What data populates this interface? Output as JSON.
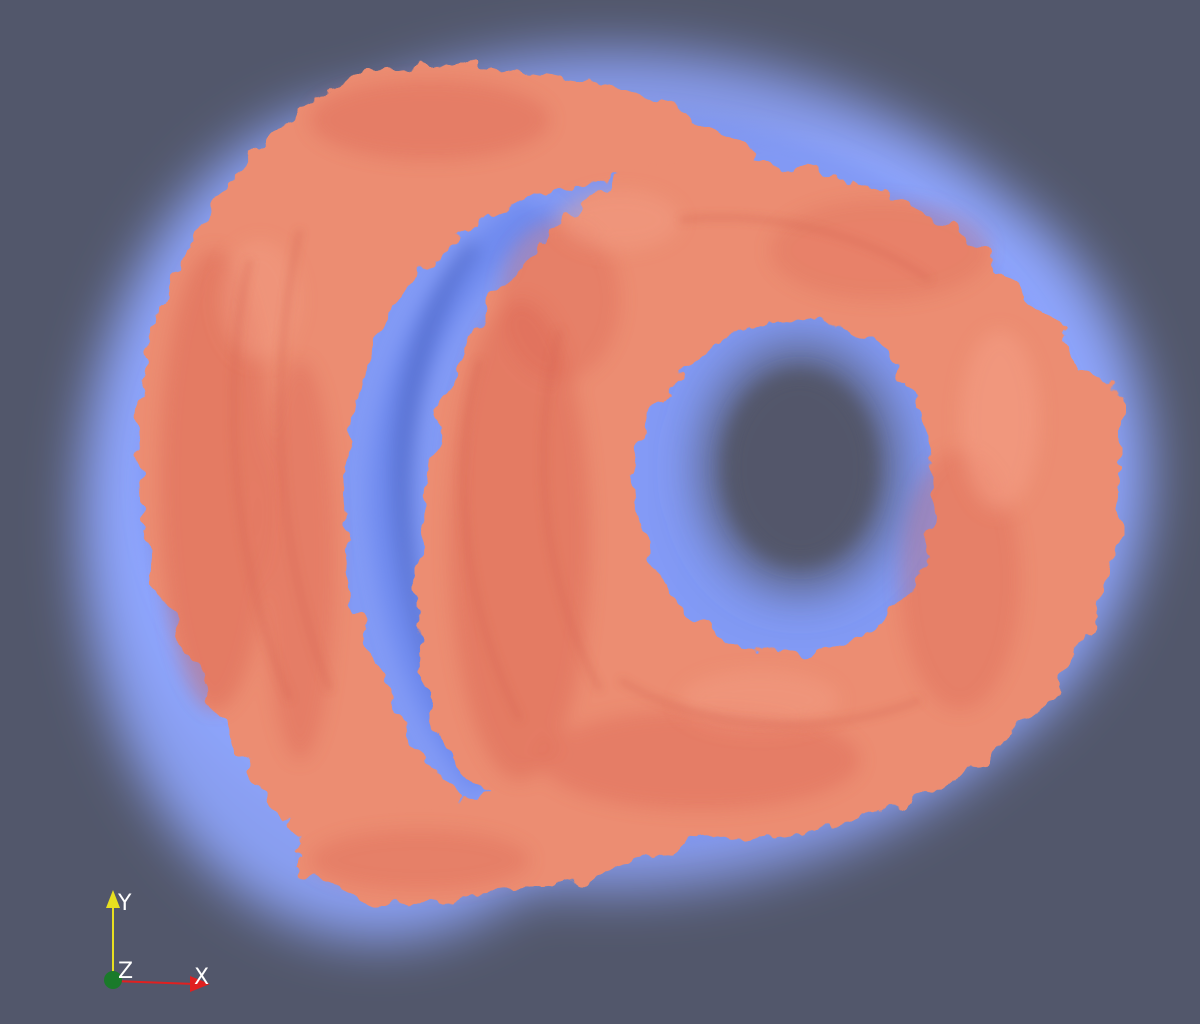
{
  "scene": {
    "background_color": "#52576b",
    "halo_color": "#8fa6ff",
    "halo_core_color": "#6e88ee",
    "surface_color": "#ec8d72",
    "surface_shadow_color": "#d9604e",
    "surface_highlight_color": "#f6a48b"
  },
  "orientation_axes": {
    "x_label": "X",
    "y_label": "Y",
    "z_label": "Z",
    "x_color": "#e02020",
    "y_color": "#e8e020",
    "z_color": "#1a7a2a"
  }
}
